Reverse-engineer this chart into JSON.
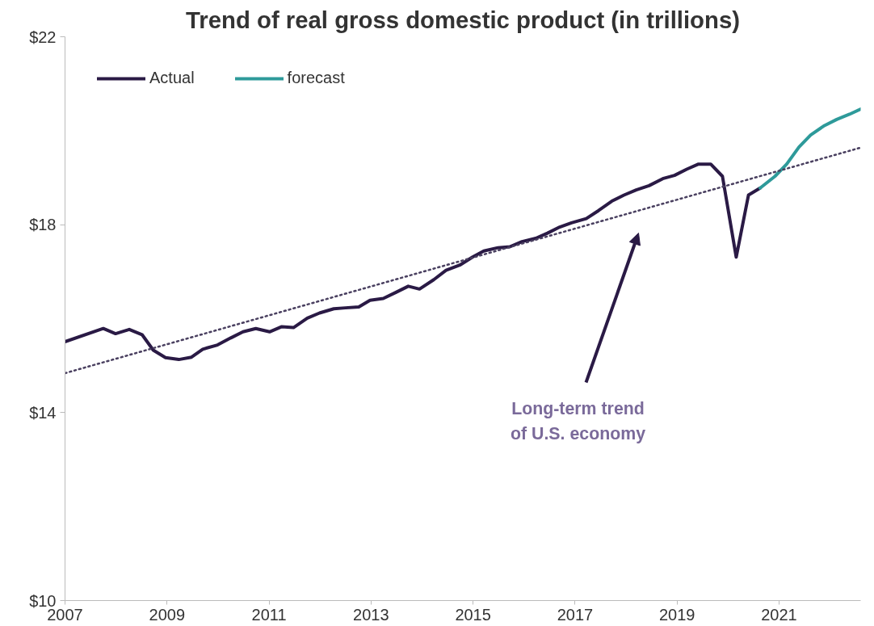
{
  "chart_data": {
    "type": "line",
    "title": "Trend of real gross domestic product (in trillions)",
    "xlim": [
      2007,
      2022.6
    ],
    "xticks": [
      2007,
      2009,
      2011,
      2013,
      2015,
      2017,
      2019,
      2021
    ],
    "ylim": [
      10,
      22
    ],
    "yticks": [
      {
        "value": 10,
        "label": "$10"
      },
      {
        "value": 14,
        "label": "$14"
      },
      {
        "value": 18,
        "label": "$18"
      },
      {
        "value": 22,
        "label": "$22"
      }
    ],
    "grid": false,
    "legend": "top left",
    "line_style": "solid",
    "marker": "none",
    "series": [
      {
        "name": "Actual",
        "color": "#2a1a45",
        "x": [
          2007.0,
          2007.75,
          2007.99,
          2008.26,
          2008.51,
          2008.73,
          2008.97,
          2009.23,
          2009.48,
          2009.7,
          2009.99,
          2010.25,
          2010.49,
          2010.74,
          2011.01,
          2011.25,
          2011.48,
          2011.75,
          2011.99,
          2012.27,
          2012.5,
          2012.76,
          2012.98,
          2013.24,
          2013.49,
          2013.73,
          2013.95,
          2014.23,
          2014.47,
          2014.74,
          2014.99,
          2015.21,
          2015.49,
          2015.72,
          2015.96,
          2016.23,
          2016.46,
          2016.7,
          2016.93,
          2017.22,
          2017.46,
          2017.72,
          2017.96,
          2018.2,
          2018.45,
          2018.72,
          2018.95,
          2019.19,
          2019.42,
          2019.66,
          2019.89,
          2020.16,
          2020.4,
          2020.63
        ],
        "values": [
          15.51,
          15.79,
          15.68,
          15.77,
          15.66,
          15.33,
          15.17,
          15.13,
          15.18,
          15.35,
          15.44,
          15.59,
          15.72,
          15.79,
          15.72,
          15.83,
          15.81,
          16.01,
          16.12,
          16.21,
          16.23,
          16.25,
          16.39,
          16.43,
          16.56,
          16.69,
          16.63,
          16.83,
          17.03,
          17.14,
          17.31,
          17.44,
          17.51,
          17.53,
          17.64,
          17.71,
          17.82,
          17.95,
          18.04,
          18.13,
          18.3,
          18.5,
          18.63,
          18.74,
          18.83,
          18.98,
          19.05,
          19.18,
          19.29,
          19.29,
          19.03,
          17.31,
          18.63,
          18.78
        ]
      },
      {
        "name": "forecast",
        "color": "#2e9a9a",
        "x": [
          2020.63,
          2020.92,
          2021.15,
          2021.39,
          2021.62,
          2021.89,
          2022.13,
          2022.38,
          2022.6
        ],
        "values": [
          18.78,
          19.03,
          19.29,
          19.65,
          19.91,
          20.11,
          20.24,
          20.35,
          20.46
        ]
      },
      {
        "type": "line",
        "color": "#4a4060",
        "line_style": "dotted",
        "x": [
          2007,
          2022.6
        ],
        "values": [
          14.84,
          19.64
        ]
      }
    ],
    "annotations": [
      "Long-term trend\nof U.S. economy"
    ]
  }
}
